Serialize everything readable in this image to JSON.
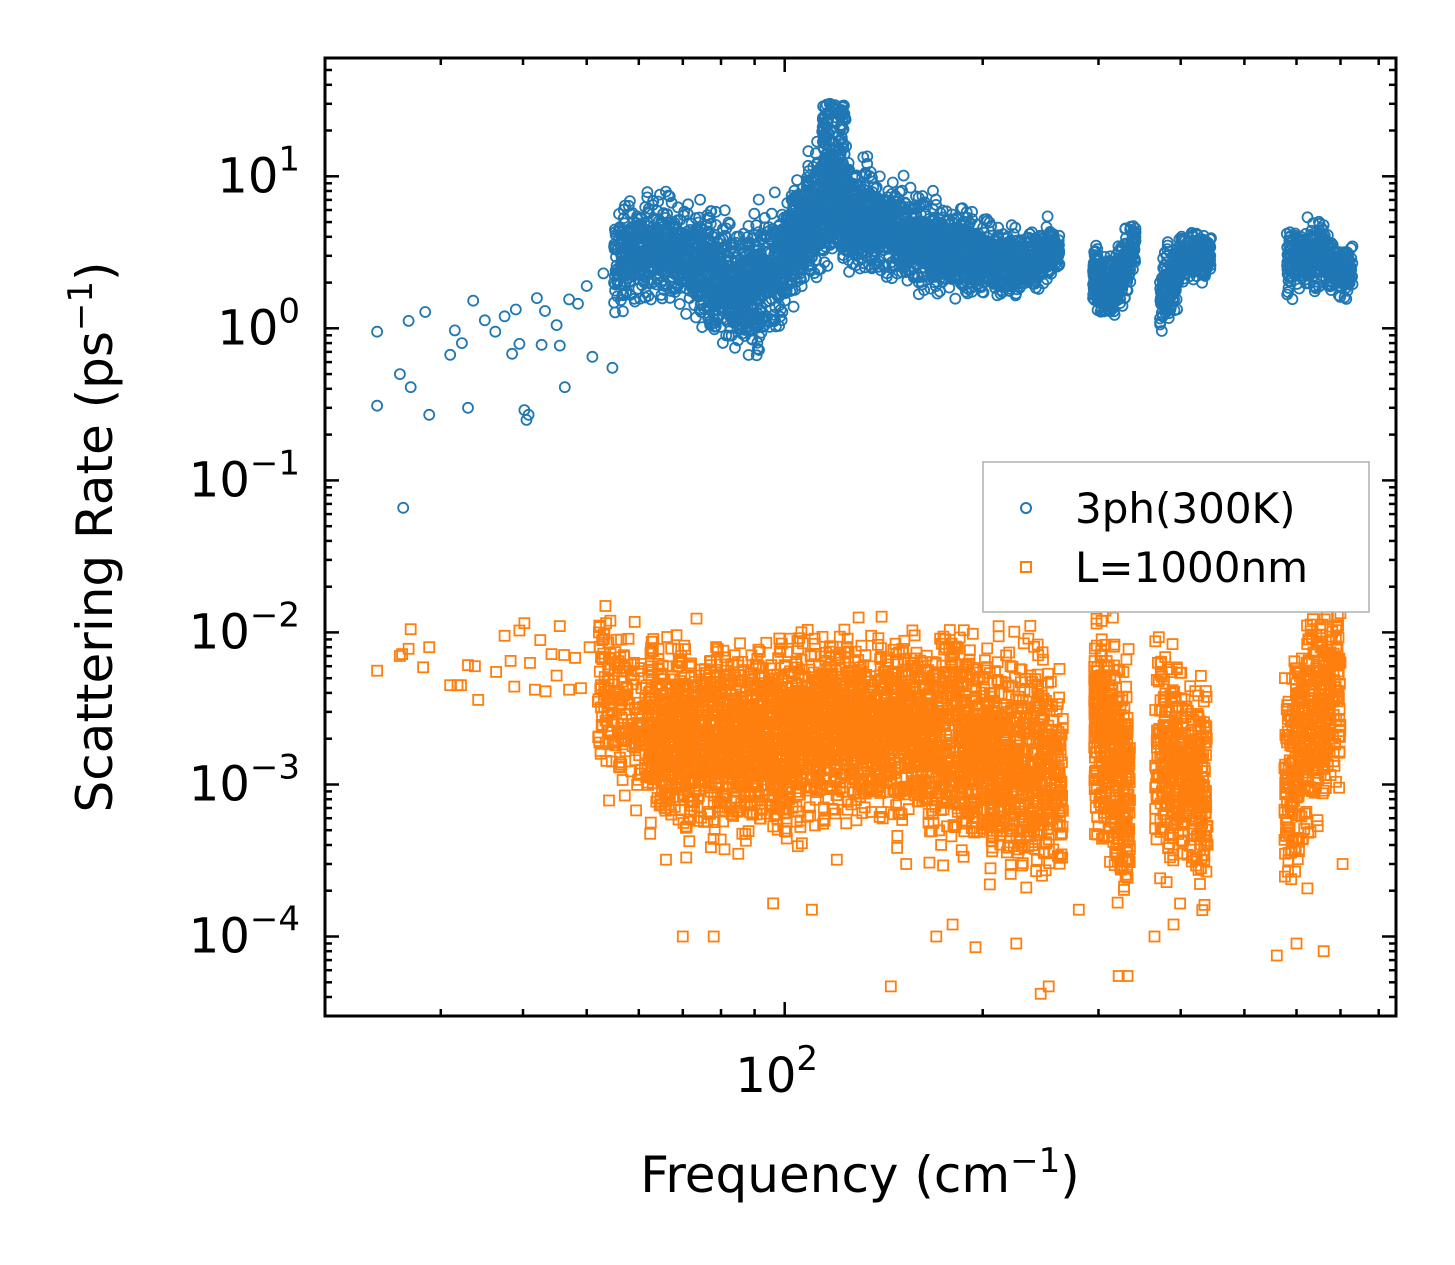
{
  "chart_data": {
    "type": "scatter",
    "xscale": "log",
    "yscale": "log",
    "xlim": [
      20,
      850
    ],
    "ylim": [
      3e-05,
      60
    ],
    "xlabel": {
      "text": "Frequency (cm",
      "sup": "−1",
      "close": ")"
    },
    "ylabel": {
      "text": "Scattering Rate (ps",
      "sup": "−1",
      "close": ")"
    },
    "x_ticks": [
      {
        "value": 100,
        "base": "10",
        "exp": "2"
      }
    ],
    "y_ticks": [
      {
        "value": 10,
        "base": "10",
        "exp": "1"
      },
      {
        "value": 1,
        "base": "10",
        "exp": "0"
      },
      {
        "value": 0.1,
        "base": "10",
        "exp": "−1"
      },
      {
        "value": 0.01,
        "base": "10",
        "exp": "−2"
      },
      {
        "value": 0.001,
        "base": "10",
        "exp": "−3"
      },
      {
        "value": 0.0001,
        "base": "10",
        "exp": "−4"
      }
    ],
    "legend": {
      "placement": "center-right"
    },
    "series": [
      {
        "name": "3ph(300K)",
        "marker": "circle",
        "color": "#1f77b4",
        "sparse_points": [
          [
            24,
            0.95
          ],
          [
            24,
            0.31
          ],
          [
            26,
            0.5
          ],
          [
            26.3,
            0.066
          ],
          [
            26.8,
            1.12
          ],
          [
            27,
            0.41
          ],
          [
            28.4,
            1.28
          ],
          [
            28.8,
            0.27
          ],
          [
            31,
            0.67
          ],
          [
            31.5,
            0.97
          ],
          [
            32.3,
            0.8
          ],
          [
            33,
            0.3
          ],
          [
            33.6,
            1.52
          ],
          [
            35,
            1.13
          ],
          [
            36.3,
            0.95
          ],
          [
            37.5,
            1.2
          ],
          [
            38.5,
            0.68
          ],
          [
            39,
            1.33
          ],
          [
            39.5,
            0.79
          ],
          [
            40.2,
            0.29
          ],
          [
            40.5,
            0.25
          ],
          [
            40.8,
            0.27
          ],
          [
            42,
            1.58
          ],
          [
            42.7,
            0.78
          ],
          [
            43.2,
            1.3
          ],
          [
            45,
            1.05
          ],
          [
            45.5,
            0.77
          ],
          [
            46.3,
            0.41
          ],
          [
            47,
            1.55
          ],
          [
            48.5,
            1.45
          ],
          [
            50,
            1.9
          ],
          [
            51,
            0.65
          ],
          [
            53,
            2.3
          ],
          [
            54.7,
            0.55
          ],
          [
            56.5,
            3.8
          ],
          [
            58,
            4.3
          ]
        ],
        "bands": [
          {
            "x": [
              55,
              62
            ],
            "center": [
              2.6,
              3.6
            ],
            "spread": 0.45,
            "count": 220
          },
          {
            "x": [
              62,
              74
            ],
            "center": [
              3.4,
              2.8
            ],
            "spread": 0.45,
            "count": 360
          },
          {
            "x": [
              74,
              88
            ],
            "center": [
              2.5,
              1.8
            ],
            "spread": 0.55,
            "count": 420
          },
          {
            "x": [
              88,
              100
            ],
            "center": [
              1.8,
              2.7
            ],
            "spread": 0.55,
            "count": 320
          },
          {
            "x": [
              100,
              118
            ],
            "center": [
              3.0,
              7.0
            ],
            "spread": 0.5,
            "count": 520
          },
          {
            "x": [
              118,
              140
            ],
            "center": [
              6.5,
              4.5
            ],
            "spread": 0.45,
            "count": 520
          },
          {
            "x": [
              140,
              175
            ],
            "center": [
              4.5,
              3.3
            ],
            "spread": 0.4,
            "count": 540
          },
          {
            "x": [
              175,
              222
            ],
            "center": [
              3.4,
              2.6
            ],
            "spread": 0.35,
            "count": 500
          },
          {
            "x": [
              222,
              262
            ],
            "center": [
              2.6,
              3.2
            ],
            "spread": 0.25,
            "count": 320
          },
          {
            "x": [
              294,
              318
            ],
            "center": [
              2.1,
              1.8
            ],
            "spread": 0.3,
            "count": 180
          },
          {
            "x": [
              318,
              342
            ],
            "center": [
              2.0,
              3.4
            ],
            "spread": 0.3,
            "count": 180
          },
          {
            "x": [
              372,
              398
            ],
            "center": [
              1.6,
              2.4
            ],
            "spread": 0.3,
            "count": 180
          },
          {
            "x": [
              398,
              445
            ],
            "center": [
              3.0,
              3.0
            ],
            "spread": 0.22,
            "count": 220
          },
          {
            "x": [
              580,
              670
            ],
            "center": [
              2.8,
              3.0
            ],
            "spread": 0.3,
            "count": 260
          },
          {
            "x": [
              670,
              730
            ],
            "center": [
              2.6,
              2.3
            ],
            "spread": 0.25,
            "count": 140
          }
        ],
        "peak": {
          "x": [
            114,
            124
          ],
          "ylo": 5.0,
          "yhi": 30,
          "count": 140
        }
      },
      {
        "name": "L=1000nm",
        "marker": "square",
        "color": "#ff7f0e",
        "sparse_points": [
          [
            24,
            0.0056
          ],
          [
            26,
            0.007
          ],
          [
            26.2,
            0.0072
          ],
          [
            26.8,
            0.0078
          ],
          [
            27,
            0.0105
          ],
          [
            28.2,
            0.0059
          ],
          [
            28.8,
            0.008
          ],
          [
            31,
            0.0045
          ],
          [
            31.8,
            0.0045
          ],
          [
            32.2,
            0.0045
          ],
          [
            33,
            0.0061
          ],
          [
            33.8,
            0.006
          ],
          [
            34.2,
            0.0036
          ],
          [
            36.4,
            0.0055
          ],
          [
            37.5,
            0.0095
          ],
          [
            38.3,
            0.0065
          ],
          [
            38.8,
            0.0044
          ],
          [
            39.5,
            0.0103
          ],
          [
            40.2,
            0.0115
          ],
          [
            41,
            0.0063
          ],
          [
            41.7,
            0.0042
          ],
          [
            42.5,
            0.0089
          ],
          [
            43.3,
            0.0041
          ],
          [
            44.2,
            0.0072
          ],
          [
            45,
            0.0052
          ],
          [
            45.5,
            0.011
          ],
          [
            46.2,
            0.0071
          ],
          [
            47,
            0.0042
          ],
          [
            48,
            0.0068
          ],
          [
            49,
            0.0043
          ],
          [
            50.5,
            0.008
          ],
          [
            52,
            0.0035
          ],
          [
            53.5,
            0.0115
          ],
          [
            55,
            0.0026
          ]
        ],
        "bands": [
          {
            "x": [
              52,
              62
            ],
            "center": [
              0.004,
              0.0024
            ],
            "spread": 0.8,
            "count": 200
          },
          {
            "x": [
              62,
              90
            ],
            "center": [
              0.0022,
              0.002
            ],
            "spread": 0.85,
            "count": 900
          },
          {
            "x": [
              90,
              125
            ],
            "center": [
              0.002,
              0.0025
            ],
            "spread": 0.85,
            "count": 900
          },
          {
            "x": [
              125,
              165
            ],
            "center": [
              0.0025,
              0.0024
            ],
            "spread": 0.8,
            "count": 720
          },
          {
            "x": [
              165,
              220
            ],
            "center": [
              0.0022,
              0.0014
            ],
            "spread": 0.95,
            "count": 720
          },
          {
            "x": [
              220,
              265
            ],
            "center": [
              0.0015,
              0.0011
            ],
            "spread": 1.0,
            "count": 400
          },
          {
            "x": [
              295,
              335
            ],
            "center": [
              0.0025,
              0.0008
            ],
            "spread": 1.0,
            "count": 420
          },
          {
            "x": [
              365,
              440
            ],
            "center": [
              0.0018,
              0.0009
            ],
            "spread": 1.0,
            "count": 420
          },
          {
            "x": [
              575,
              700
            ],
            "center": [
              0.0008,
              0.0045
            ],
            "spread": 1.0,
            "count": 460
          }
        ],
        "outliers": [
          [
            66,
            0.00032
          ],
          [
            70,
            0.0001
          ],
          [
            78,
            0.0001
          ],
          [
            85,
            0.00035
          ],
          [
            96,
            0.000165
          ],
          [
            110,
            0.00015
          ],
          [
            120,
            0.00032
          ],
          [
            145,
            4.7e-05
          ],
          [
            153,
            0.0003
          ],
          [
            170,
            0.0001
          ],
          [
            180,
            0.00012
          ],
          [
            195,
            8.5e-05
          ],
          [
            205,
            0.00022
          ],
          [
            225,
            9e-05
          ],
          [
            245,
            4.2e-05
          ],
          [
            252,
            4.7e-05
          ],
          [
            280,
            0.00015
          ],
          [
            322,
            5.5e-05
          ],
          [
            332,
            5.5e-05
          ],
          [
            365,
            0.0001
          ],
          [
            390,
            0.00012
          ],
          [
            560,
            7.5e-05
          ],
          [
            600,
            9e-05
          ],
          [
            660,
            8e-05
          ],
          [
            705,
            0.0003
          ]
        ]
      }
    ]
  }
}
